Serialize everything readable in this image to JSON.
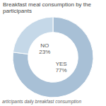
{
  "chart_data": {
    "type": "pie",
    "title": "Breakfast meal consumption by the participants",
    "annotations": [
      "articipants daily breakfast consumption"
    ],
    "categories": [
      "YES",
      "NO"
    ],
    "values": [
      77,
      23
    ],
    "value_labels": [
      "77%",
      "23%"
    ],
    "colors": [
      "#a8c0d6",
      "#c5d8e8"
    ],
    "data_labels": true
  }
}
